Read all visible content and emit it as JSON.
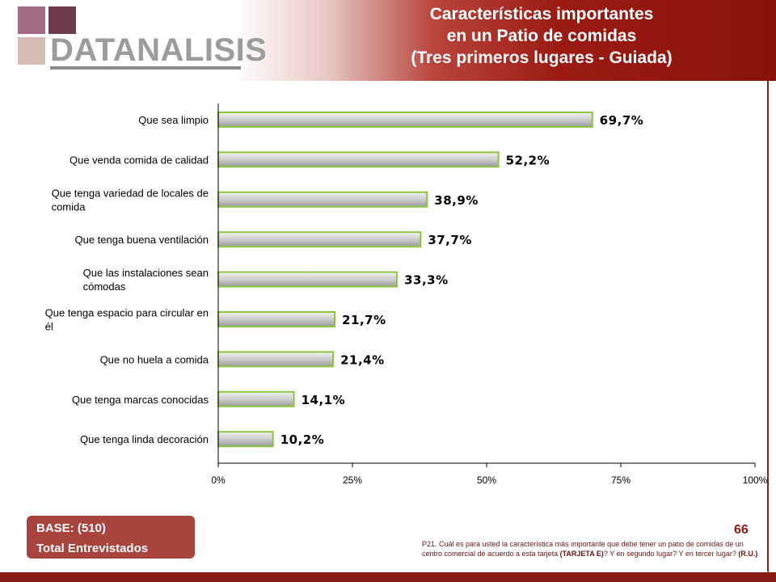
{
  "logo": {
    "text": "DATANALISIS",
    "colors": [
      "#a36a83",
      "#6e3a4c",
      "#d4bbb4"
    ]
  },
  "title": {
    "line1": "Características importantes",
    "line2": "en un Patio de comidas",
    "line3": "(Tres primeros lugares - Guiada)"
  },
  "chart_data": {
    "type": "bar",
    "orientation": "horizontal",
    "categories": [
      [
        "Que sea limpio"
      ],
      [
        "Que venda comida de calidad"
      ],
      [
        "Que tenga variedad de locales de",
        "comida"
      ],
      [
        "Que tenga buena ventilación"
      ],
      [
        "Que las instalaciones sean",
        "cómodas"
      ],
      [
        "Que tenga espacio para circular en",
        "él"
      ],
      [
        "Que no huela a comida"
      ],
      [
        "Que tenga marcas conocidas"
      ],
      [
        "Que tenga linda decoración"
      ]
    ],
    "values": [
      69.7,
      52.2,
      38.9,
      37.7,
      33.3,
      21.7,
      21.4,
      14.1,
      10.2
    ],
    "value_labels": [
      "69,7%",
      "52,2%",
      "38,9%",
      "37,7%",
      "33,3%",
      "21,7%",
      "21,4%",
      "14,1%",
      "10,2%"
    ],
    "x_ticks": [
      "0%",
      "25%",
      "50%",
      "75%",
      "100%"
    ],
    "xlim": [
      0,
      100
    ],
    "bar_color": "#c8c8c8",
    "bar_border": "#8cc63f",
    "grid": false
  },
  "base": {
    "line1": "BASE:  (510)",
    "line2": "Total Entrevistados"
  },
  "page_number": "66",
  "footnote": {
    "text": "P21. Cuál es para usted la característica más importante que debe tener un patio de comidas de un centro comercial de acuerdo a esta tarjeta ",
    "bold1": "(TARJETA E)",
    "text2": "? Y en segundo lugar? Y en tercer lugar? ",
    "bold2": "(R.U.)"
  }
}
